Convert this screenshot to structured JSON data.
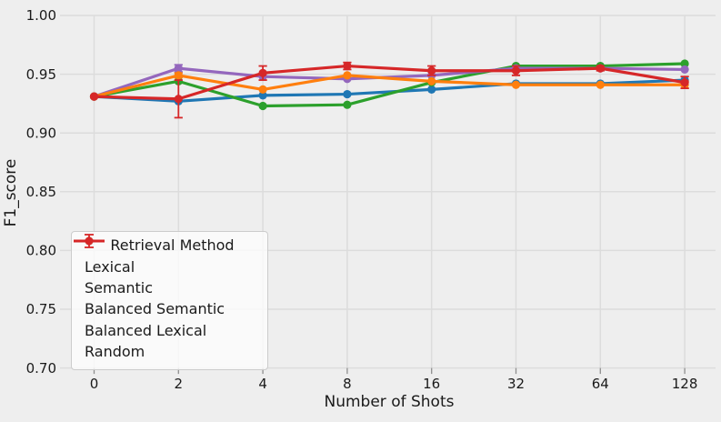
{
  "figure": {
    "background": "#eeeeee",
    "grid_color": "#dcdcdc",
    "tick_color": "#8f8f8f",
    "text_color": "#1a1a1a"
  },
  "chart_data": {
    "type": "line",
    "title": "",
    "xlabel": "Number of Shots",
    "ylabel": "F1_score",
    "x_tick_labels": [
      "0",
      "2",
      "4",
      "8",
      "16",
      "32",
      "64",
      "128"
    ],
    "y_tick_labels": [
      "1.00",
      "0.95",
      "0.90",
      "0.85",
      "0.80",
      "0.75",
      "0.70"
    ],
    "ylim": [
      0.7,
      1.0
    ],
    "grid": true,
    "legend": {
      "title": "Retrieval Method",
      "position": "lower left"
    },
    "series": [
      {
        "name": "Lexical",
        "slug": "lexical",
        "color": "#1f77b4",
        "values": [
          0.931,
          0.927,
          0.932,
          0.933,
          0.937,
          0.942,
          0.942,
          0.945
        ],
        "errors": [
          0.001,
          0.001,
          0.001,
          0.001,
          0.001,
          0.001,
          0.001,
          0.001
        ]
      },
      {
        "name": "Semantic",
        "slug": "semantic",
        "color": "#2ca02c",
        "values": [
          0.931,
          0.944,
          0.923,
          0.924,
          0.943,
          0.957,
          0.957,
          0.959
        ],
        "errors": [
          0.001,
          0.001,
          0.001,
          0.001,
          0.001,
          0.001,
          0.001,
          0.001
        ]
      },
      {
        "name": "Balanced Semantic",
        "slug": "balanced-semantic",
        "color": "#9467bd",
        "values": [
          0.931,
          0.955,
          0.948,
          0.946,
          0.949,
          0.955,
          0.955,
          0.954
        ],
        "errors": [
          0.001,
          0.003,
          0.001,
          0.001,
          0.001,
          0.001,
          0.001,
          0.001
        ]
      },
      {
        "name": "Balanced Lexical",
        "slug": "balanced-lexical",
        "color": "#ff7f0e",
        "values": [
          0.931,
          0.949,
          0.937,
          0.949,
          0.944,
          0.941,
          0.941,
          0.941
        ],
        "errors": [
          0.001,
          0.002,
          0.001,
          0.001,
          0.001,
          0.001,
          0.001,
          0.003
        ]
      },
      {
        "name": "Random",
        "slug": "random",
        "color": "#d62728",
        "values": [
          0.931,
          0.929,
          0.951,
          0.957,
          0.953,
          0.953,
          0.955,
          0.943
        ],
        "errors": [
          0.001,
          0.016,
          0.006,
          0.003,
          0.004,
          0.004,
          0.002,
          0.005
        ]
      }
    ]
  }
}
